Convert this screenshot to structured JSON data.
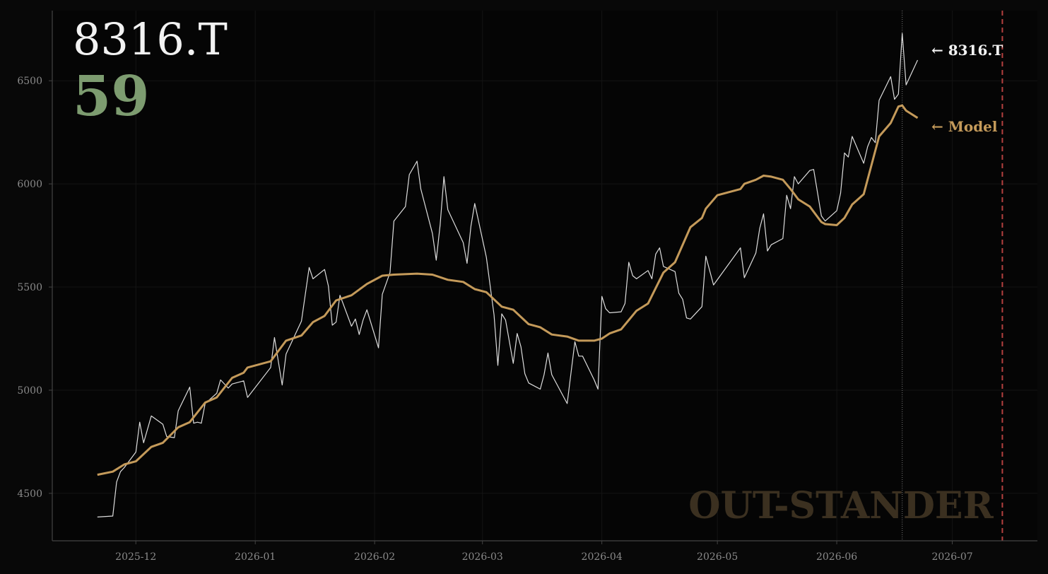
{
  "chart_data": {
    "type": "line",
    "title": "8316.T",
    "score": 59,
    "score_color": "#7d9c70",
    "watermark": "OUT-STANDER",
    "xlim": [
      -21.7,
      234.1
    ],
    "ylim": [
      4270,
      6840
    ],
    "xticks": [
      {
        "value": 0,
        "label": "2025-12"
      },
      {
        "value": 31,
        "label": "2026-01"
      },
      {
        "value": 62,
        "label": "2026-02"
      },
      {
        "value": 90,
        "label": "2026-03"
      },
      {
        "value": 121,
        "label": "2026-04"
      },
      {
        "value": 151,
        "label": "2026-05"
      },
      {
        "value": 182,
        "label": "2026-06"
      },
      {
        "value": 212,
        "label": "2026-07"
      }
    ],
    "yticks": [
      4500,
      5000,
      5500,
      6000,
      6500
    ],
    "grid": true,
    "vlines": [
      {
        "x": 199,
        "style": "dotted",
        "color": "#777777"
      },
      {
        "x": 225,
        "style": "dashed",
        "color": "#b5403f"
      }
    ],
    "series": [
      {
        "name": "8316.T",
        "end_label": "← 8316.T",
        "color": "#dddddd",
        "width": 1.2,
        "x": [
          -10,
          -6,
          -5,
          -4,
          -3,
          0,
          1,
          2,
          4,
          7,
          8,
          10,
          11,
          14,
          15,
          16,
          17,
          18,
          21,
          22,
          24,
          25,
          28,
          29,
          35,
          36,
          38,
          39,
          43,
          45,
          46,
          49,
          50,
          51,
          52,
          53,
          56,
          57,
          58,
          59,
          60,
          63,
          64,
          66,
          67,
          70,
          71,
          73,
          74,
          77,
          78,
          79,
          80,
          81,
          85,
          86,
          87,
          88,
          91,
          93,
          94,
          95,
          96,
          98,
          99,
          100,
          101,
          102,
          105,
          106,
          107,
          108,
          112,
          114,
          115,
          116,
          119,
          120,
          121,
          122,
          123,
          126,
          127,
          128,
          129,
          130,
          133,
          134,
          135,
          136,
          137,
          140,
          141,
          142,
          143,
          144,
          147,
          148,
          150,
          157,
          158,
          161,
          162,
          163,
          164,
          165,
          168,
          169,
          170,
          171,
          172,
          175,
          176,
          178,
          179,
          182,
          183,
          184,
          185,
          186,
          189,
          190,
          191,
          192,
          193,
          196,
          197,
          198,
          199,
          200,
          203
        ],
        "values": [
          4385,
          4390,
          4555,
          4605,
          4625,
          4700,
          4845,
          4745,
          4875,
          4835,
          4775,
          4770,
          4900,
          5015,
          4840,
          4845,
          4840,
          4935,
          4985,
          5050,
          5010,
          5030,
          5045,
          4965,
          5110,
          5255,
          5025,
          5175,
          5335,
          5595,
          5540,
          5585,
          5505,
          5315,
          5330,
          5460,
          5310,
          5345,
          5270,
          5340,
          5390,
          5205,
          5465,
          5570,
          5820,
          5890,
          6045,
          6110,
          5975,
          5760,
          5630,
          5800,
          6035,
          5875,
          5715,
          5615,
          5795,
          5905,
          5645,
          5365,
          5120,
          5370,
          5340,
          5130,
          5275,
          5210,
          5080,
          5035,
          5005,
          5075,
          5180,
          5075,
          4935,
          5235,
          5165,
          5165,
          5050,
          5005,
          5455,
          5395,
          5375,
          5380,
          5420,
          5620,
          5555,
          5540,
          5580,
          5540,
          5660,
          5690,
          5600,
          5575,
          5470,
          5440,
          5350,
          5345,
          5405,
          5650,
          5510,
          5690,
          5545,
          5665,
          5785,
          5855,
          5675,
          5705,
          5735,
          5945,
          5880,
          6035,
          6000,
          6065,
          6070,
          5845,
          5820,
          5870,
          5955,
          6150,
          6130,
          6230,
          6100,
          6180,
          6225,
          6200,
          6405,
          6520,
          6410,
          6435,
          6730,
          6480,
          6600
        ]
      },
      {
        "name": "Model",
        "end_label": "← Model",
        "color": "#c49a5a",
        "width": 3,
        "x": [
          -10,
          -6,
          -3,
          0,
          4,
          7,
          11,
          14,
          18,
          21,
          25,
          28,
          29,
          35,
          39,
          43,
          46,
          49,
          52,
          56,
          60,
          64,
          67,
          73,
          77,
          81,
          85,
          88,
          91,
          95,
          98,
          102,
          105,
          108,
          112,
          115,
          119,
          121,
          123,
          126,
          130,
          133,
          137,
          140,
          144,
          147,
          148,
          151,
          157,
          158,
          161,
          163,
          165,
          168,
          170,
          172,
          175,
          178,
          179,
          182,
          184,
          186,
          189,
          191,
          193,
          196,
          198,
          199,
          200,
          203
        ],
        "values": [
          4590,
          4605,
          4640,
          4655,
          4725,
          4745,
          4820,
          4845,
          4940,
          4965,
          5060,
          5085,
          5110,
          5140,
          5240,
          5265,
          5330,
          5360,
          5435,
          5460,
          5515,
          5555,
          5560,
          5565,
          5560,
          5535,
          5525,
          5490,
          5475,
          5405,
          5390,
          5320,
          5305,
          5270,
          5260,
          5240,
          5240,
          5250,
          5275,
          5295,
          5385,
          5420,
          5570,
          5620,
          5790,
          5835,
          5880,
          5945,
          5975,
          6000,
          6020,
          6040,
          6035,
          6020,
          5975,
          5925,
          5890,
          5815,
          5805,
          5800,
          5835,
          5900,
          5950,
          6090,
          6230,
          6295,
          6375,
          6380,
          6355,
          6320
        ]
      }
    ]
  }
}
